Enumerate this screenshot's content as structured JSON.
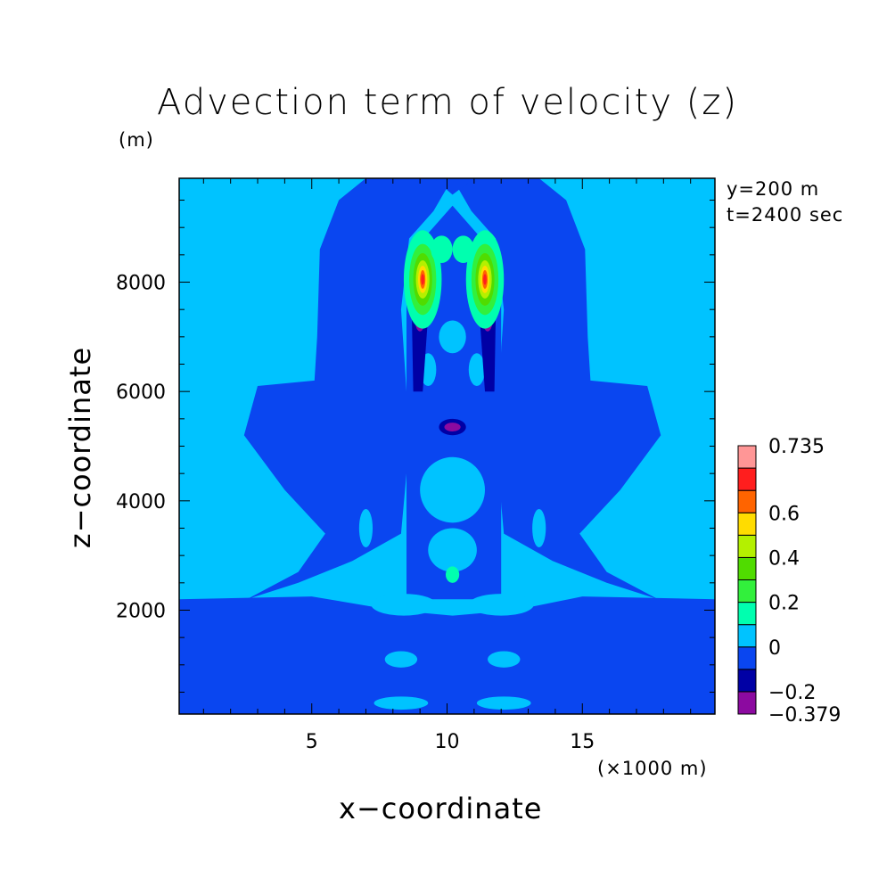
{
  "chart_data": {
    "type": "heatmap",
    "title": "Advection term of velocity (z)",
    "xlabel": "x−coordinate",
    "ylabel": "z−coordinate",
    "x_unit": "(×1000 m)",
    "y_unit": "(m)",
    "annotations": [
      "y=200 m",
      "t=2400 sec"
    ],
    "xlim": [
      0.1,
      19.9
    ],
    "ylim": [
      100,
      9900
    ],
    "x_ticks": [
      5,
      10,
      15
    ],
    "y_ticks": [
      2000,
      4000,
      6000,
      8000
    ],
    "colorbar": {
      "levels": [
        -0.379,
        -0.2,
        -0.1,
        0,
        0.1,
        0.2,
        0.3,
        0.4,
        0.5,
        0.6,
        0.7,
        0.735
      ],
      "labels": [
        "0.735",
        "0.6",
        "0.4",
        "0.2",
        "0",
        "−0.2",
        "−0.379"
      ],
      "label_values": [
        0.735,
        0.6,
        0.4,
        0.2,
        0,
        -0.2,
        -0.379
      ],
      "colors": [
        "#8c0aa0",
        "#0000a5",
        "#0a46f0",
        "#00c3ff",
        "#00ffaf",
        "#32f03c",
        "#50dc00",
        "#b4f000",
        "#ffdc00",
        "#ff6400",
        "#ff1e1e",
        "#ff9696"
      ]
    },
    "features": [
      {
        "name": "background",
        "level": 0.05
      },
      {
        "name": "lower-band",
        "level": -0.05,
        "z_range": [
          100,
          2200
        ]
      },
      {
        "name": "left-rising-plume",
        "level": -0.05
      },
      {
        "name": "right-rising-plume",
        "level": -0.05
      },
      {
        "name": "left-max",
        "x": 9.1,
        "z": 8050,
        "level": 0.7
      },
      {
        "name": "right-max",
        "x": 11.4,
        "z": 8050,
        "level": 0.7
      },
      {
        "name": "left-min-column",
        "x": 9.0,
        "z": 6900,
        "level": -0.25
      },
      {
        "name": "right-min-column",
        "x": 11.5,
        "z": 6900,
        "level": -0.25
      },
      {
        "name": "central-min",
        "x": 10.2,
        "z": 5350,
        "level": -0.3
      },
      {
        "name": "small-positive",
        "x": 10.2,
        "z": 2650,
        "level": 0.15
      }
    ]
  }
}
